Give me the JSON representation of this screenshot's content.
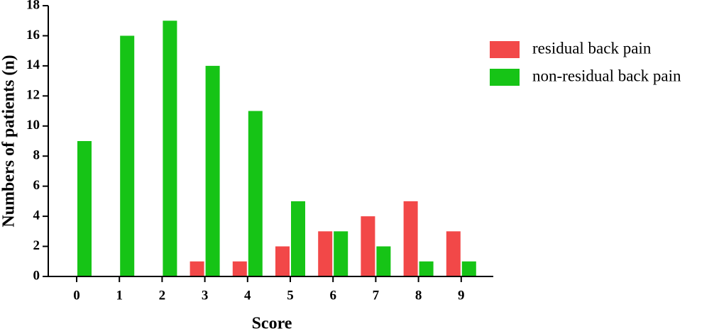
{
  "chart_data": {
    "type": "bar",
    "x_label": "Score",
    "y_label": "Numbers of patients (n)",
    "categories": [
      "0",
      "1",
      "2",
      "3",
      "4",
      "5",
      "6",
      "7",
      "8",
      "9"
    ],
    "series": [
      {
        "name": "residual back pain",
        "color": "#f24848",
        "values": [
          0,
          0,
          0,
          1,
          1,
          2,
          3,
          4,
          5,
          3
        ]
      },
      {
        "name": "non-residual back pain",
        "color": "#16c416",
        "values": [
          9,
          16,
          17,
          14,
          11,
          5,
          3,
          2,
          1,
          1
        ]
      }
    ],
    "ylim": [
      0,
      18
    ],
    "yticks": [
      0,
      2,
      4,
      6,
      8,
      10,
      12,
      14,
      16,
      18
    ],
    "legend": "right",
    "grid": false
  }
}
